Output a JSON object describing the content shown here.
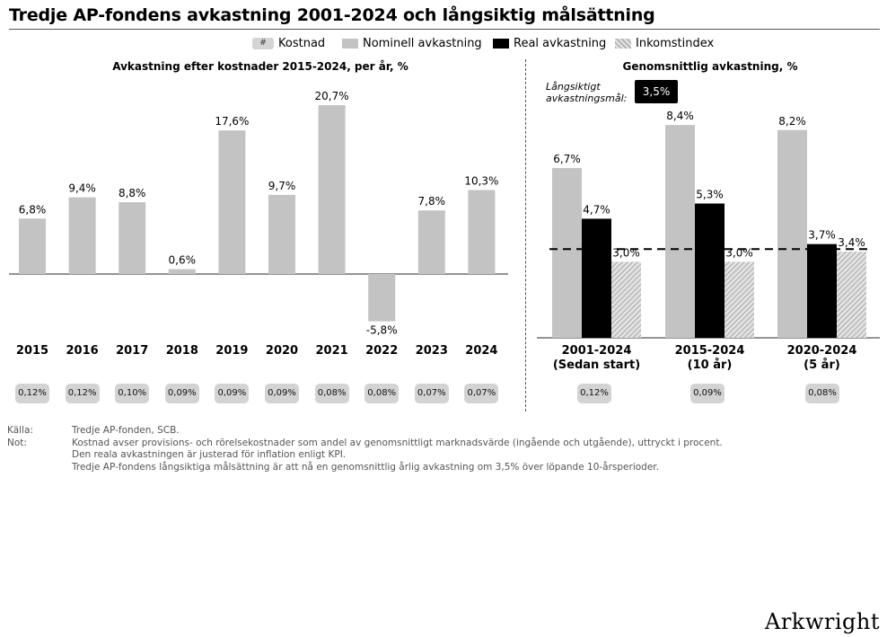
{
  "title": "Tredje AP-fondens avkastning 2001-2024 och långsiktig målsättning",
  "legend": {
    "cost_symbol": "#",
    "cost": "Kostnad",
    "nominal": "Nominell avkastning",
    "real": "Real avkastning",
    "income": "Inkomstindex"
  },
  "colors": {
    "nominal": "#c3c3c3",
    "real": "#000000",
    "income": "hatched-grey",
    "cost_pill": "#d3d3d3"
  },
  "left_panel": {
    "title": "Avkastning efter kostnader 2015-2024, per år, %",
    "costs": [
      "0,12%",
      "0,12%",
      "0,10%",
      "0,09%",
      "0,09%",
      "0,09%",
      "0,08%",
      "0,08%",
      "0,07%",
      "0,07%"
    ]
  },
  "right_panel": {
    "title": "Genomsnittlig avkastning, %",
    "goal_label": "Långsiktigt\navkastningsmål:",
    "goal_value": "3,5%",
    "costs": [
      "0,12%",
      "0,09%",
      "0,08%"
    ]
  },
  "chart_data": [
    {
      "type": "bar",
      "title": "Avkastning efter kostnader 2015-2024, per år, %",
      "categories": [
        "2015",
        "2016",
        "2017",
        "2018",
        "2019",
        "2020",
        "2021",
        "2022",
        "2023",
        "2024"
      ],
      "series": [
        {
          "name": "Nominell avkastning",
          "values": [
            6.8,
            9.4,
            8.8,
            0.6,
            17.6,
            9.7,
            20.7,
            -5.8,
            7.8,
            10.3
          ]
        }
      ],
      "data_labels": [
        "6,8%",
        "9,4%",
        "8,8%",
        "0,6%",
        "17,6%",
        "9,7%",
        "20,7%",
        "-5,8%",
        "7,8%",
        "10,3%"
      ],
      "grid": false
    },
    {
      "type": "bar",
      "title": "Genomsnittlig avkastning, %",
      "categories": [
        "2001-2024\n(Sedan start)",
        "2015-2024\n(10 år)",
        "2020-2024\n(5 år)"
      ],
      "series": [
        {
          "name": "Nominell avkastning",
          "values": [
            6.7,
            8.4,
            8.2
          ],
          "labels": [
            "6,7%",
            "8,4%",
            "8,2%"
          ]
        },
        {
          "name": "Real avkastning",
          "values": [
            4.7,
            5.3,
            3.7
          ],
          "labels": [
            "4,7%",
            "5,3%",
            "3,7%"
          ]
        },
        {
          "name": "Inkomstindex",
          "values": [
            3.0,
            3.0,
            3.4
          ],
          "labels": [
            "3,0%",
            "3,0%",
            "3,4%"
          ]
        }
      ],
      "reference_line": {
        "value": 3.5,
        "style": "dashed"
      },
      "grid": false
    }
  ],
  "footnotes": {
    "source_label": "Källa:",
    "source": "Tredje AP-fonden, SCB.",
    "note_label": "Not:",
    "notes": [
      "Kostnad avser provisions- och rörelsekostnader som andel av genomsnittligt marknadsvärde (ingående och utgående), uttryckt i procent.",
      "Den reala avkastningen är justerad för inflation enligt KPI.",
      "Tredje AP-fondens långsiktiga målsättning är att nå en genomsnittlig årlig avkastning om 3,5% över löpande 10-årsperioder."
    ]
  },
  "brand": "Arkwright"
}
